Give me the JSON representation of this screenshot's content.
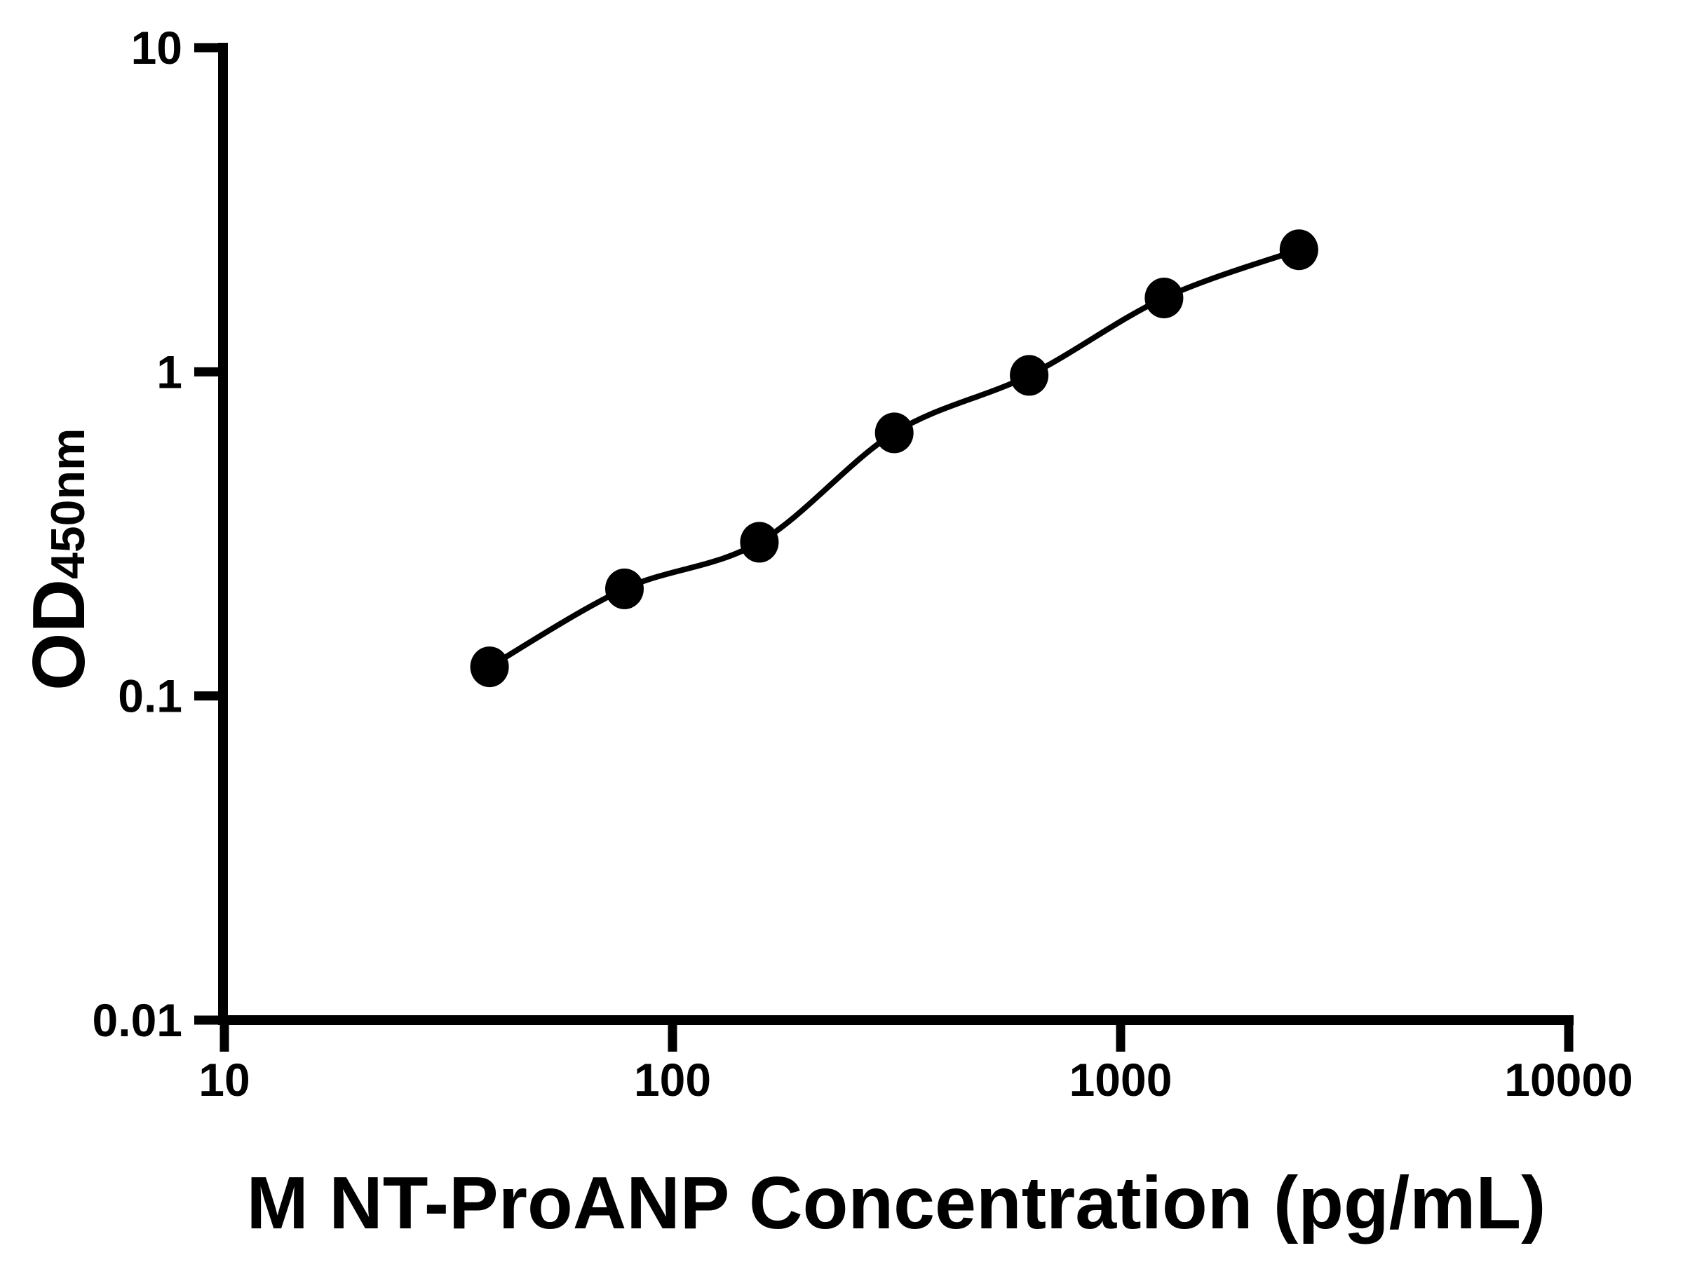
{
  "figure": {
    "background": "#ffffff",
    "foreground": "#000000"
  },
  "chart_data": {
    "type": "scatter",
    "subtype": "elisa-standard-curve",
    "title": "",
    "xlabel": "M NT-ProANP Concentration (pg/mL)",
    "ylabel": "OD450nm",
    "ylabel_main": "OD",
    "ylabel_subscript": "450nm",
    "x_scale": "log10",
    "y_scale": "log10",
    "xlim": [
      10,
      10000
    ],
    "ylim": [
      0.01,
      10
    ],
    "grid": false,
    "legend_position": "none",
    "x_ticks": [
      {
        "value": 10,
        "label": "10"
      },
      {
        "value": 100,
        "label": "100"
      },
      {
        "value": 1000,
        "label": "1000"
      },
      {
        "value": 10000,
        "label": "10000"
      }
    ],
    "y_ticks": [
      {
        "value": 10,
        "label": "10"
      },
      {
        "value": 1,
        "label": "1"
      },
      {
        "value": 0.1,
        "label": "0.1"
      },
      {
        "value": 0.01,
        "label": "0.01"
      }
    ],
    "series": [
      {
        "name": "standard-curve",
        "marker": "filled-circle",
        "line": "smooth",
        "color": "#000000",
        "points": [
          {
            "x": 39.06,
            "y": 0.123
          },
          {
            "x": 78.13,
            "y": 0.214
          },
          {
            "x": 156.25,
            "y": 0.298
          },
          {
            "x": 312.5,
            "y": 0.648
          },
          {
            "x": 625,
            "y": 0.975
          },
          {
            "x": 1250,
            "y": 1.69
          },
          {
            "x": 2500,
            "y": 2.38
          }
        ]
      }
    ]
  }
}
